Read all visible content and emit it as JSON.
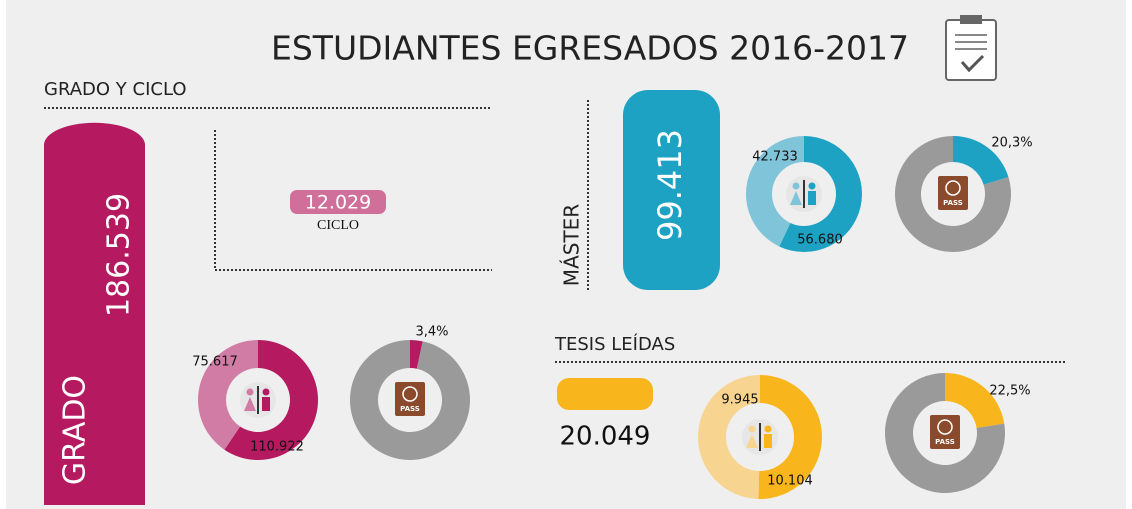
{
  "title": "ESTUDIANTES EGRESADOS 2016-2017",
  "passport_label": "PASS",
  "grado": {
    "section": "GRADO Y CICLO",
    "label": "GRADO",
    "total": "186.539",
    "ciclo": {
      "total": "12.029",
      "label": "CICLO"
    },
    "color": "#b5195f",
    "light": "#d07ca4",
    "women": {
      "value": 75617,
      "label": "75.617"
    },
    "men": {
      "value": 110922,
      "label": "110.922"
    },
    "foreign": {
      "value": 3.4,
      "label": "3,4%"
    }
  },
  "master": {
    "label": "MÁSTER",
    "total": "99.413",
    "color": "#1da2c4",
    "light": "#80c4d9",
    "women": {
      "value": 42733,
      "label": "42.733"
    },
    "men": {
      "value": 56680,
      "label": "56.680"
    },
    "foreign": {
      "value": 20.3,
      "label": "20,3%"
    }
  },
  "tesis": {
    "section": "TESIS LEÍDAS",
    "total": "20.049",
    "color": "#f9b51c",
    "light": "#f7d590",
    "women": {
      "value": 9945,
      "label": "9.945"
    },
    "men": {
      "value": 10104,
      "label": "10.104"
    },
    "foreign": {
      "value": 22.5,
      "label": "22,5%"
    }
  }
}
